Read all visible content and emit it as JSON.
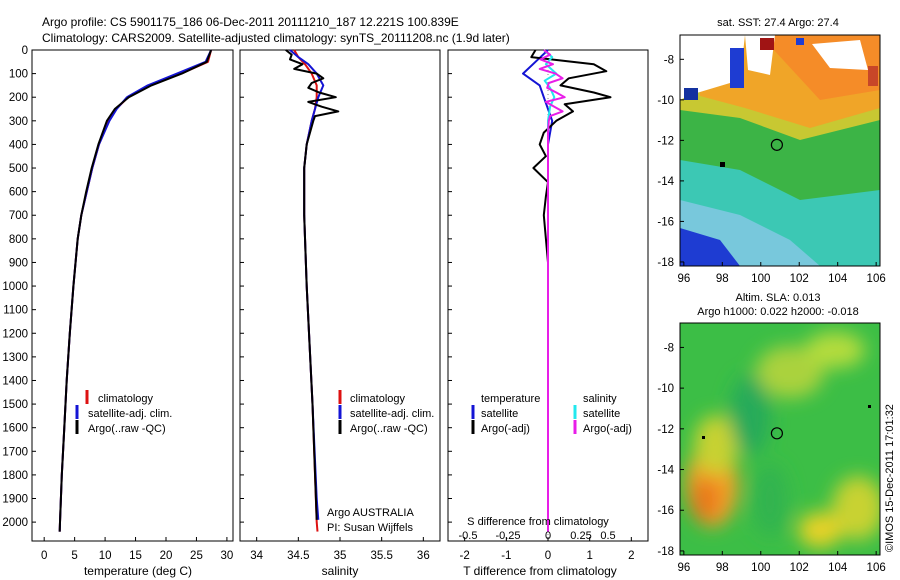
{
  "header": {
    "line1": "Argo profile: CS 5901175_186 06-Dec-2011 20111210_187 12.221S 100.839E",
    "line2": "Climatology: CARS2009. Satellite-adjusted climatology: synTS_20111208.nc (1.9d later)"
  },
  "colors": {
    "climatology": "#dd1111",
    "satellite_adj": "#1414d4",
    "argo": "#000000",
    "salinity_sat": "#22e8ee",
    "salinity_argo": "#e81ee8"
  },
  "chart_data": [
    {
      "type": "line",
      "id": "temperature",
      "xlabel": "temperature (deg C)",
      "ylabel": "",
      "xlim": [
        -2,
        31
      ],
      "ylim": [
        2080,
        0
      ],
      "xticks": [
        0,
        5,
        10,
        15,
        20,
        25,
        30
      ],
      "yticks": [
        0,
        100,
        200,
        300,
        400,
        500,
        600,
        700,
        800,
        900,
        1000,
        1100,
        1200,
        1300,
        1400,
        1500,
        1600,
        1700,
        1800,
        1900,
        2000
      ],
      "legend": {
        "position": "lower-middle",
        "entries": [
          "climatology",
          "satellite-adj. clim.",
          "Argo(..raw -QC)"
        ]
      },
      "series": [
        {
          "name": "climatology",
          "color": "#dd1111",
          "depth": [
            0,
            50,
            100,
            150,
            200,
            250,
            300,
            400,
            500,
            600,
            700,
            800,
            1000,
            1200,
            1400,
            1600,
            1800,
            2000,
            2040
          ],
          "values": [
            27.4,
            26.9,
            22.5,
            17.2,
            13.8,
            11.8,
            10.6,
            9.0,
            7.9,
            7.0,
            6.1,
            5.5,
            4.8,
            4.2,
            3.7,
            3.3,
            2.9,
            2.6,
            2.55
          ]
        },
        {
          "name": "satellite-adj. clim.",
          "color": "#1414d4",
          "depth": [
            0,
            50,
            100,
            150,
            200,
            250,
            300,
            400,
            500,
            600,
            700,
            800,
            1000,
            1200,
            1400,
            1600,
            1800,
            2000,
            2040
          ],
          "values": [
            27.4,
            26.5,
            21.8,
            17.0,
            13.6,
            11.9,
            10.7,
            9.0,
            7.9,
            7.0,
            6.1,
            5.5,
            4.8,
            4.2,
            3.7,
            3.3,
            2.9,
            2.6,
            2.55
          ]
        },
        {
          "name": "Argo(..raw -QC)",
          "color": "#000000",
          "depth": [
            0,
            50,
            100,
            150,
            200,
            250,
            300,
            400,
            500,
            600,
            700,
            800,
            1000,
            1200,
            1400,
            1600,
            1800,
            2000,
            2040
          ],
          "values": [
            27.4,
            26.7,
            22.6,
            17.6,
            13.9,
            11.6,
            10.3,
            8.9,
            7.8,
            6.9,
            6.1,
            5.5,
            4.8,
            4.2,
            3.7,
            3.3,
            2.9,
            2.6,
            2.55
          ]
        }
      ]
    },
    {
      "type": "line",
      "id": "salinity",
      "xlabel": "salinity",
      "xlim": [
        33.8,
        36.2
      ],
      "ylim": [
        2080,
        0
      ],
      "xticks": [
        34,
        34.5,
        35,
        35.5,
        36
      ],
      "legend": {
        "position": "lower-middle",
        "entries": [
          "climatology",
          "satellite-adj. clim.",
          "Argo(..raw -QC)"
        ]
      },
      "annotation": [
        "Argo AUSTRALIA",
        "PI: Susan Wijffels"
      ],
      "series": [
        {
          "name": "climatology",
          "color": "#dd1111",
          "depth": [
            0,
            30,
            60,
            100,
            150,
            200,
            250,
            300,
            400,
            500,
            700,
            1000,
            1500,
            2000,
            2040
          ],
          "values": [
            34.45,
            34.5,
            34.58,
            34.66,
            34.72,
            34.72,
            34.7,
            34.66,
            34.6,
            34.57,
            34.57,
            34.6,
            34.67,
            34.72,
            34.73
          ]
        },
        {
          "name": "satellite-adj. clim.",
          "color": "#1414d4",
          "depth": [
            0,
            30,
            60,
            100,
            150,
            200,
            250,
            300,
            400,
            500,
            700,
            1000,
            1500,
            1900,
            1990
          ],
          "values": [
            34.4,
            34.5,
            34.62,
            34.72,
            34.8,
            34.74,
            34.7,
            34.66,
            34.6,
            34.57,
            34.57,
            34.6,
            34.67,
            34.72,
            34.74
          ]
        },
        {
          "name": "Argo(..raw -QC)",
          "color": "#000000",
          "depth": [
            0,
            20,
            40,
            60,
            80,
            100,
            120,
            140,
            160,
            180,
            200,
            220,
            240,
            260,
            280,
            300,
            350,
            400,
            500,
            700,
            1000,
            1500,
            1990
          ],
          "values": [
            34.35,
            34.42,
            34.4,
            34.55,
            34.45,
            34.72,
            34.8,
            34.66,
            34.62,
            34.75,
            34.95,
            34.62,
            34.78,
            34.98,
            34.7,
            34.68,
            34.64,
            34.6,
            34.57,
            34.57,
            34.6,
            34.67,
            34.72
          ]
        }
      ]
    },
    {
      "type": "line",
      "id": "difference",
      "xlabel": "T difference from climatology",
      "xlabel_top": "S difference from climatology",
      "xlim": [
        -2.4,
        2.4
      ],
      "ylim": [
        2080,
        0
      ],
      "xticks": [
        -2,
        -1,
        0,
        1,
        2
      ],
      "xticklabels_top": [
        "-0.5",
        "-0.25",
        "0",
        "0.25",
        "0.5"
      ],
      "legend": {
        "position": "lower-middle",
        "temperature_title": "temperature",
        "salinity_title": "salinity",
        "entries": [
          "satellite",
          "Argo(-adj)",
          "satellite",
          "Argo(-adj)"
        ]
      },
      "series": [
        {
          "name": "temperature satellite",
          "color": "#1414d4",
          "depth": [
            0,
            50,
            100,
            150,
            200,
            300,
            400,
            600,
            1000,
            1500,
            2040
          ],
          "values": [
            0.0,
            -0.3,
            -0.6,
            -0.2,
            -0.1,
            0.1,
            0.0,
            0.0,
            0.0,
            0.0,
            0.0
          ]
        },
        {
          "name": "temperature Argo(-adj)",
          "color": "#000000",
          "depth": [
            0,
            30,
            60,
            90,
            120,
            150,
            180,
            200,
            230,
            260,
            300,
            350,
            400,
            450,
            500,
            560,
            620,
            700,
            800,
            900,
            1000,
            1200,
            1500,
            1800,
            2040
          ],
          "values": [
            -0.3,
            -0.4,
            1.1,
            1.4,
            0.5,
            0.3,
            1.1,
            1.5,
            0.4,
            0.6,
            0.2,
            -0.1,
            -0.2,
            -0.05,
            -0.35,
            0.0,
            -0.05,
            -0.1,
            -0.05,
            0.0,
            0.0,
            0.0,
            0.0,
            0.0,
            0.0
          ]
        },
        {
          "name": "salinity satellite",
          "color": "#22e8ee",
          "depth": [
            0,
            30,
            60,
            100,
            130,
            160,
            200,
            240,
            300,
            400,
            600,
            1000,
            1500,
            2040
          ],
          "values": [
            -0.1,
            0.1,
            -0.05,
            0.2,
            -0.08,
            0.05,
            0.15,
            0.05,
            0.0,
            0.0,
            0.0,
            0.0,
            0.0,
            0.0
          ]
        },
        {
          "name": "salinity Argo(-adj)",
          "color": "#e81ee8",
          "depth": [
            0,
            20,
            40,
            60,
            80,
            100,
            120,
            140,
            160,
            180,
            200,
            220,
            240,
            260,
            280,
            300,
            350,
            400,
            600,
            1000,
            1500,
            2040
          ],
          "values": [
            -0.1,
            0.05,
            -0.18,
            0.12,
            -0.2,
            0.18,
            0.35,
            0.02,
            -0.02,
            0.2,
            0.4,
            -0.05,
            0.15,
            0.35,
            0.05,
            0.02,
            0.0,
            0.0,
            0.0,
            0.0,
            0.0,
            0.0
          ]
        }
      ]
    },
    {
      "type": "heatmap",
      "id": "sst_map",
      "title": "sat. SST: 27.4  Argo: 27.4",
      "xlim": [
        95.8,
        106.2
      ],
      "ylim": [
        -18.2,
        -6.8
      ],
      "xticks": [
        96,
        98,
        100,
        102,
        104,
        106
      ],
      "yticks": [
        -8,
        -10,
        -12,
        -14,
        -16,
        -18
      ],
      "float_position": {
        "lon": 100.839,
        "lat": -12.221
      }
    },
    {
      "type": "heatmap",
      "id": "sla_map",
      "title_line1": "Altim. SLA: 0.013",
      "title_line2": "Argo h1000: 0.022  h2000: -0.018",
      "xlim": [
        95.8,
        106.2
      ],
      "ylim": [
        -18.2,
        -6.8
      ],
      "xticks": [
        96,
        98,
        100,
        102,
        104,
        106
      ],
      "yticks": [
        -8,
        -10,
        -12,
        -14,
        -16,
        -18
      ],
      "float_position": {
        "lon": 100.839,
        "lat": -12.221
      }
    }
  ],
  "side_label": "©IMOS 15-Dec-2011 17:01:32"
}
